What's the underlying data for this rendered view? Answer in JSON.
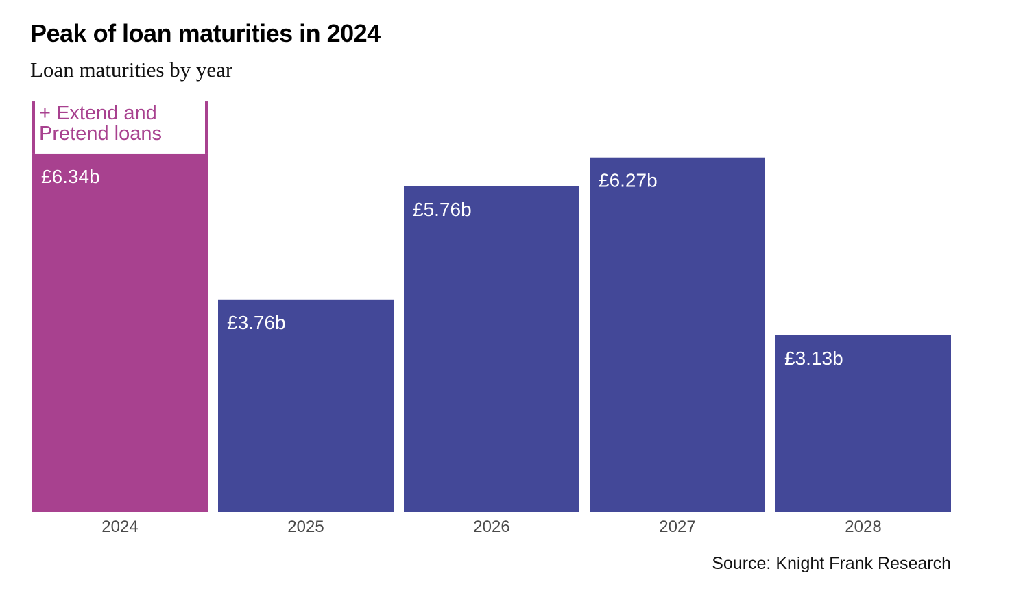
{
  "chart_data": {
    "type": "bar",
    "title": "Peak of loan maturities in 2024",
    "subtitle": "Loan maturities by year",
    "categories": [
      "2024",
      "2025",
      "2026",
      "2027",
      "2028"
    ],
    "values": [
      6.34,
      3.76,
      5.76,
      6.27,
      3.13
    ],
    "value_labels": [
      "£6.34b",
      "£3.76b",
      "£5.76b",
      "£6.27b",
      "£3.13b"
    ],
    "unit": "£ billions",
    "ylim": [
      0,
      7.3
    ],
    "grid": false,
    "highlight_index": 0,
    "colors": {
      "highlight": "#A8418F",
      "default": "#434898",
      "tick": "#4a4a4a"
    },
    "annotation": {
      "category": "2024",
      "text_lines": [
        "+ Extend and",
        "Pretend loans"
      ],
      "estimated_extra": 0.92
    },
    "source": "Source: Knight Frank Research"
  }
}
